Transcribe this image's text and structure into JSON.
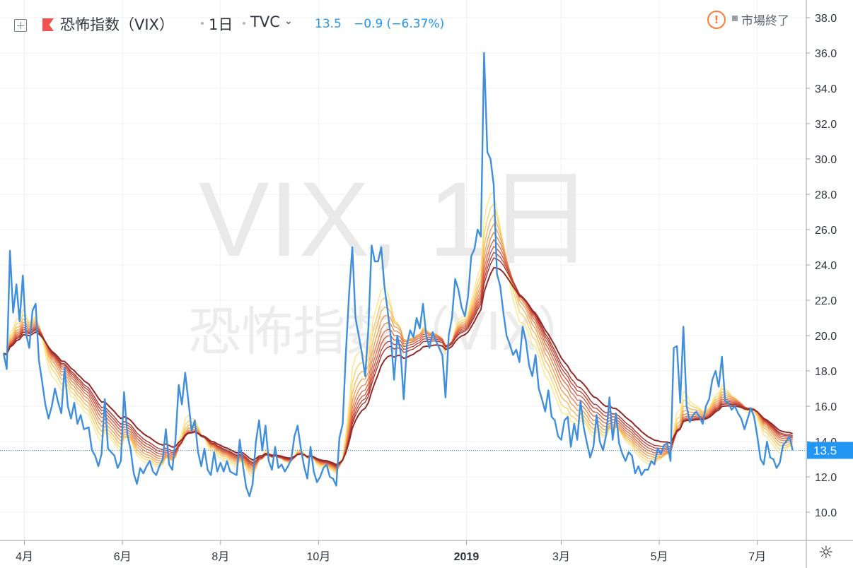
{
  "header": {
    "symbol": "恐怖指数（VIX）",
    "interval": "1日",
    "source": "TVC",
    "last_price": "13.5",
    "change": "−0.9 (−6.37%)",
    "market_status": "市場終了"
  },
  "watermark": {
    "line1": "VIX, 1日",
    "line2": "恐怖指数（VIX）"
  },
  "price_label": "13.5",
  "colors": {
    "price_line": "#3f8fdc",
    "price_badge": "#2196f3",
    "ribbon": [
      "#fde68a",
      "#fbd26d",
      "#f7b85c",
      "#f29e54",
      "#ec8650",
      "#e06d49",
      "#d25a40",
      "#c1473a",
      "#ab3530",
      "#942a27"
    ]
  },
  "chart_data": {
    "type": "line",
    "ylim": [
      8.4,
      39.0
    ],
    "yticks": [
      "10.0",
      "12.0",
      "14.0",
      "16.0",
      "18.0",
      "20.0",
      "22.0",
      "24.0",
      "26.0",
      "28.0",
      "30.0",
      "32.0",
      "34.0",
      "36.0",
      "38.0"
    ],
    "xticks": [
      {
        "label": "4月",
        "x": 0.0
      },
      {
        "label": "6月",
        "x": 61.0
      },
      {
        "label": "8月",
        "x": 122.0
      },
      {
        "label": "10月",
        "x": 183.0
      },
      {
        "label": "2019",
        "x": 275.0
      },
      {
        "label": "3月",
        "x": 334.0
      },
      {
        "label": "5月",
        "x": 395.0
      },
      {
        "label": "7月",
        "x": 456.0
      }
    ],
    "xlim": [
      -13,
      479
    ],
    "series": [
      {
        "type": "price",
        "points": [
          [
            -13,
            19
          ],
          [
            -11,
            18.1
          ],
          [
            -9,
            24.8
          ],
          [
            -7,
            21.3
          ],
          [
            -5,
            22.9
          ],
          [
            -3,
            20.8
          ],
          [
            -1,
            23.4
          ],
          [
            1,
            20.1
          ],
          [
            3,
            19.3
          ],
          [
            5,
            21.4
          ],
          [
            7,
            21.8
          ],
          [
            9,
            18.6
          ],
          [
            11,
            17.4
          ],
          [
            13,
            16.1
          ],
          [
            15,
            15.3
          ],
          [
            17,
            16.0
          ],
          [
            19,
            17.0
          ],
          [
            21,
            16.2
          ],
          [
            23,
            15.6
          ],
          [
            25,
            18.2
          ],
          [
            27,
            16.0
          ],
          [
            29,
            15.3
          ],
          [
            31,
            16.2
          ],
          [
            33,
            15.0
          ],
          [
            35,
            15.5
          ],
          [
            37,
            14.7
          ],
          [
            40,
            14.8
          ],
          [
            42,
            13.5
          ],
          [
            44,
            13.2
          ],
          [
            46,
            12.6
          ],
          [
            48,
            13.3
          ],
          [
            50,
            16.4
          ],
          [
            52,
            13.6
          ],
          [
            54,
            13.4
          ],
          [
            56,
            13.2
          ],
          [
            58,
            12.5
          ],
          [
            60,
            12.9
          ],
          [
            62,
            16.8
          ],
          [
            64,
            14.4
          ],
          [
            66,
            13.6
          ],
          [
            68,
            12.2
          ],
          [
            70,
            11.6
          ],
          [
            72,
            12.5
          ],
          [
            74,
            12.2
          ],
          [
            76,
            12.6
          ],
          [
            78,
            12.9
          ],
          [
            80,
            12.3
          ],
          [
            82,
            12.1
          ],
          [
            84,
            12.6
          ],
          [
            86,
            13.0
          ],
          [
            88,
            14.7
          ],
          [
            90,
            12.7
          ],
          [
            92,
            12.4
          ],
          [
            94,
            14.1
          ],
          [
            96,
            17.2
          ],
          [
            98,
            16.1
          ],
          [
            100,
            17.9
          ],
          [
            102,
            16.3
          ],
          [
            104,
            14.6
          ],
          [
            106,
            15.2
          ],
          [
            108,
            13.4
          ],
          [
            110,
            12.6
          ],
          [
            112,
            13.6
          ],
          [
            114,
            12.4
          ],
          [
            116,
            12.1
          ],
          [
            118,
            13.4
          ],
          [
            120,
            12.3
          ],
          [
            122,
            12.8
          ],
          [
            124,
            12.3
          ],
          [
            126,
            12.9
          ],
          [
            128,
            12.3
          ],
          [
            130,
            12.2
          ],
          [
            132,
            12.1
          ],
          [
            134,
            14.1
          ],
          [
            136,
            12.6
          ],
          [
            138,
            11.4
          ],
          [
            140,
            10.9
          ],
          [
            142,
            11.6
          ],
          [
            144,
            14.0
          ],
          [
            146,
            15.2
          ],
          [
            148,
            13.5
          ],
          [
            150,
            14.9
          ],
          [
            152,
            12.9
          ],
          [
            154,
            12.4
          ],
          [
            156,
            13.7
          ],
          [
            158,
            12.5
          ],
          [
            160,
            12.7
          ],
          [
            162,
            12.3
          ],
          [
            164,
            12.6
          ],
          [
            166,
            13.0
          ],
          [
            168,
            14.3
          ],
          [
            170,
            14.9
          ],
          [
            172,
            13.6
          ],
          [
            174,
            12.6
          ],
          [
            176,
            11.9
          ],
          [
            178,
            13.7
          ],
          [
            180,
            12.3
          ],
          [
            182,
            11.7
          ],
          [
            184,
            12.0
          ],
          [
            186,
            12.5
          ],
          [
            188,
            12.7
          ],
          [
            190,
            12.0
          ],
          [
            192,
            11.9
          ],
          [
            194,
            11.5
          ],
          [
            196,
            14.2
          ],
          [
            198,
            15.0
          ],
          [
            200,
            19.0
          ],
          [
            202,
            22.4
          ],
          [
            204,
            25.0
          ],
          [
            206,
            21.0
          ],
          [
            208,
            20.0
          ],
          [
            210,
            19.0
          ],
          [
            212,
            17.7
          ],
          [
            214,
            20.4
          ],
          [
            216,
            25.1
          ],
          [
            218,
            24.2
          ],
          [
            220,
            24.2
          ],
          [
            222,
            25.0
          ],
          [
            224,
            22.8
          ],
          [
            226,
            21.4
          ],
          [
            228,
            19.9
          ],
          [
            230,
            17.5
          ],
          [
            232,
            20.0
          ],
          [
            234,
            19.1
          ],
          [
            236,
            16.4
          ],
          [
            238,
            19.5
          ],
          [
            240,
            20.3
          ],
          [
            242,
            19.9
          ],
          [
            244,
            21.0
          ],
          [
            246,
            20.4
          ],
          [
            248,
            21.8
          ],
          [
            250,
            20.0
          ],
          [
            252,
            19.3
          ],
          [
            254,
            20.2
          ],
          [
            256,
            19.7
          ],
          [
            258,
            19.3
          ],
          [
            260,
            18.9
          ],
          [
            262,
            16.5
          ],
          [
            264,
            20.0
          ],
          [
            266,
            21.0
          ],
          [
            268,
            23.2
          ],
          [
            270,
            22.6
          ],
          [
            272,
            21.6
          ],
          [
            274,
            21.1
          ],
          [
            276,
            22.2
          ],
          [
            278,
            24.5
          ],
          [
            280,
            24.9
          ],
          [
            282,
            26.0
          ],
          [
            284,
            25.6
          ],
          [
            286,
            36.0
          ],
          [
            288,
            30.4
          ],
          [
            290,
            30.0
          ],
          [
            292,
            28.5
          ],
          [
            294,
            23.5
          ],
          [
            296,
            22.8
          ],
          [
            298,
            21.3
          ],
          [
            300,
            20.0
          ],
          [
            302,
            19.5
          ],
          [
            304,
            18.9
          ],
          [
            306,
            19.2
          ],
          [
            308,
            18.5
          ],
          [
            310,
            20.5
          ],
          [
            312,
            19.7
          ],
          [
            314,
            18.3
          ],
          [
            316,
            17.7
          ],
          [
            318,
            18.9
          ],
          [
            320,
            17.0
          ],
          [
            322,
            16.4
          ],
          [
            324,
            15.7
          ],
          [
            326,
            16.9
          ],
          [
            328,
            15.4
          ],
          [
            330,
            15.2
          ],
          [
            332,
            14.3
          ],
          [
            334,
            14.1
          ],
          [
            336,
            15.2
          ],
          [
            338,
            15.4
          ],
          [
            340,
            13.7
          ],
          [
            342,
            15.0
          ],
          [
            344,
            14.1
          ],
          [
            346,
            16.3
          ],
          [
            348,
            14.8
          ],
          [
            350,
            13.9
          ],
          [
            352,
            13.1
          ],
          [
            354,
            13.7
          ],
          [
            356,
            15.5
          ],
          [
            358,
            14.0
          ],
          [
            360,
            13.5
          ],
          [
            362,
            14.4
          ],
          [
            364,
            16.5
          ],
          [
            366,
            14.1
          ],
          [
            368,
            15.6
          ],
          [
            370,
            13.9
          ],
          [
            372,
            13.3
          ],
          [
            374,
            12.9
          ],
          [
            376,
            13.4
          ],
          [
            378,
            13.2
          ],
          [
            380,
            12.2
          ],
          [
            382,
            12.6
          ],
          [
            384,
            12.1
          ],
          [
            386,
            12.4
          ],
          [
            388,
            12.4
          ],
          [
            390,
            12.9
          ],
          [
            392,
            12.7
          ],
          [
            394,
            13.6
          ],
          [
            396,
            13.3
          ],
          [
            398,
            13.8
          ],
          [
            400,
            13.9
          ],
          [
            402,
            12.9
          ],
          [
            404,
            19.3
          ],
          [
            406,
            19.4
          ],
          [
            408,
            16.2
          ],
          [
            410,
            20.5
          ],
          [
            412,
            16.0
          ],
          [
            414,
            15.1
          ],
          [
            416,
            15.5
          ],
          [
            418,
            15.7
          ],
          [
            420,
            15.4
          ],
          [
            422,
            15.0
          ],
          [
            424,
            16.0
          ],
          [
            426,
            16.4
          ],
          [
            428,
            17.5
          ],
          [
            430,
            18.0
          ],
          [
            432,
            17.1
          ],
          [
            434,
            18.8
          ],
          [
            436,
            16.3
          ],
          [
            438,
            16.2
          ],
          [
            440,
            15.8
          ],
          [
            442,
            16.0
          ],
          [
            444,
            15.6
          ],
          [
            446,
            15.3
          ],
          [
            448,
            14.7
          ],
          [
            450,
            15.3
          ],
          [
            452,
            15.9
          ],
          [
            454,
            15.4
          ],
          [
            456,
            14.3
          ],
          [
            458,
            13.0
          ],
          [
            460,
            12.7
          ],
          [
            462,
            14.0
          ],
          [
            464,
            13.1
          ],
          [
            466,
            13.0
          ],
          [
            468,
            12.5
          ],
          [
            470,
            12.8
          ],
          [
            472,
            13.8
          ],
          [
            474,
            14.0
          ],
          [
            476,
            14.3
          ],
          [
            478,
            13.5
          ]
        ]
      }
    ]
  }
}
